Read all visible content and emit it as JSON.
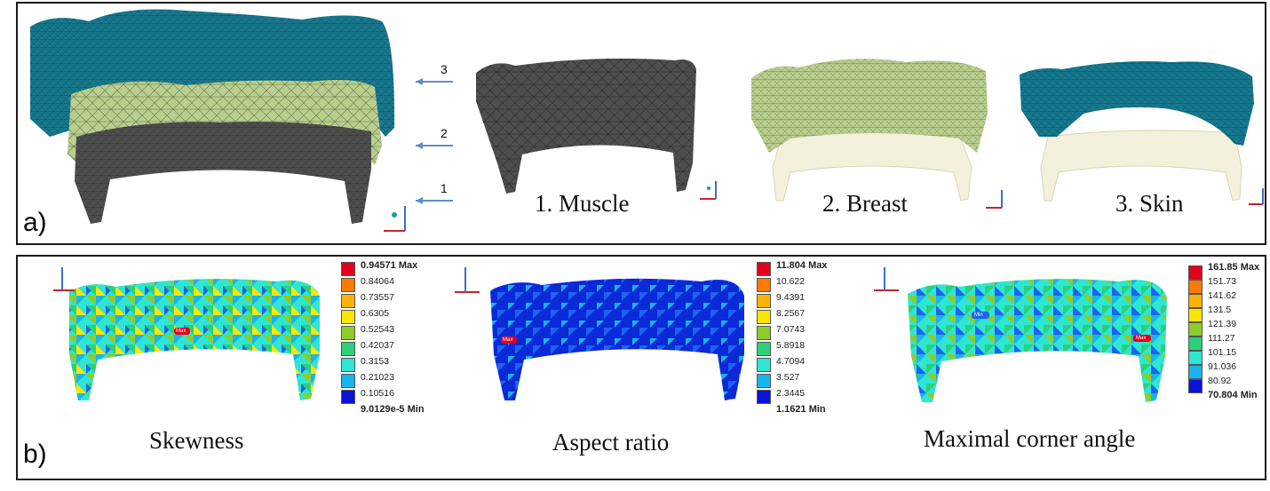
{
  "panel_a": {
    "tag": "a)",
    "arrow_numbers": [
      "3",
      "2",
      "1"
    ],
    "labels": [
      "1. Muscle",
      "2. Breast",
      "3. Skin"
    ]
  },
  "panel_b": {
    "tag": "b)",
    "metrics": [
      {
        "label": "Skewness",
        "legend": [
          "0.94571 Max",
          "0.84064",
          "0.73557",
          "0.6305",
          "0.52543",
          "0.42037",
          "0.3153",
          "0.21023",
          "0.10516",
          "9.0129e-5 Min"
        ],
        "markers": [
          "Max"
        ]
      },
      {
        "label": "Aspect ratio",
        "legend": [
          "11.804 Max",
          "10.622",
          "9.4391",
          "8.2567",
          "7.0743",
          "5.8918",
          "4.7094",
          "3.527",
          "2.3445",
          "1.1621 Min"
        ],
        "markers": [
          "Max"
        ]
      },
      {
        "label": "Maximal corner angle",
        "legend": [
          "161.85 Max",
          "151.73",
          "141.62",
          "131.5",
          "121.39",
          "111.27",
          "101.15",
          "91.036",
          "80.92",
          "70.804 Min"
        ],
        "markers": [
          "Min",
          "Max"
        ]
      }
    ],
    "legend_colors": [
      "#e3001b",
      "#ff7a00",
      "#ffb300",
      "#ffe600",
      "#8ccd2b",
      "#2ad17a",
      "#2ee6d2",
      "#18b4ee",
      "#1d63f0",
      "#0a14d8"
    ]
  },
  "colors": {
    "skin": "#17798f",
    "breast": "#b9cf8e",
    "muscle": "#4e4e4e",
    "arrow": "#5b8fc7",
    "base": "#f3f1dc"
  }
}
